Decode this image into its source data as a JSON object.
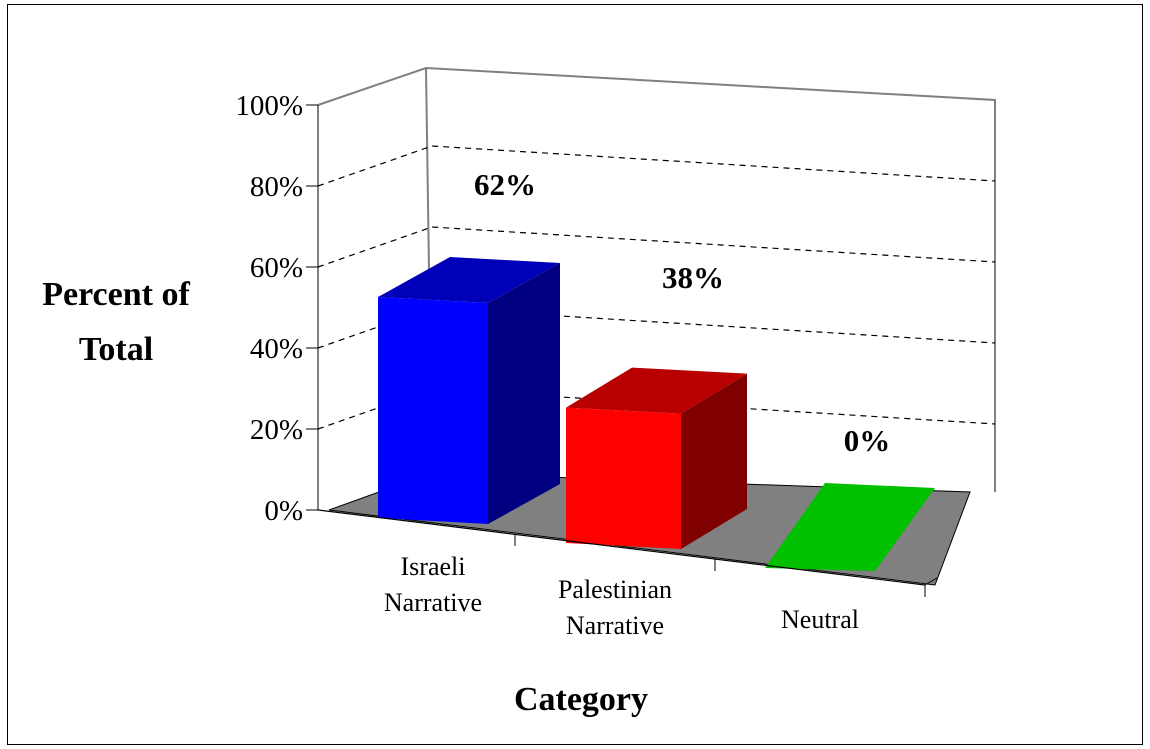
{
  "chart_data": {
    "type": "bar",
    "style": "3d-column",
    "categories": [
      [
        "Israeli",
        "Narrative"
      ],
      [
        "Palestinian",
        "Narrative"
      ],
      [
        "Neutral"
      ]
    ],
    "values": [
      62,
      38,
      0
    ],
    "data_labels": [
      "62%",
      "38%",
      "0%"
    ],
    "bar_colors": [
      "#0000ff",
      "#ff0000",
      "#00c000"
    ],
    "title": "",
    "xlabel": "Category",
    "ylabel": [
      "Percent of",
      "Total"
    ],
    "ylim": [
      0,
      100
    ],
    "yticks": [
      "0%",
      "20%",
      "40%",
      "60%",
      "80%",
      "100%"
    ],
    "grid": true,
    "legend": "none",
    "floor_color": "#808080"
  }
}
